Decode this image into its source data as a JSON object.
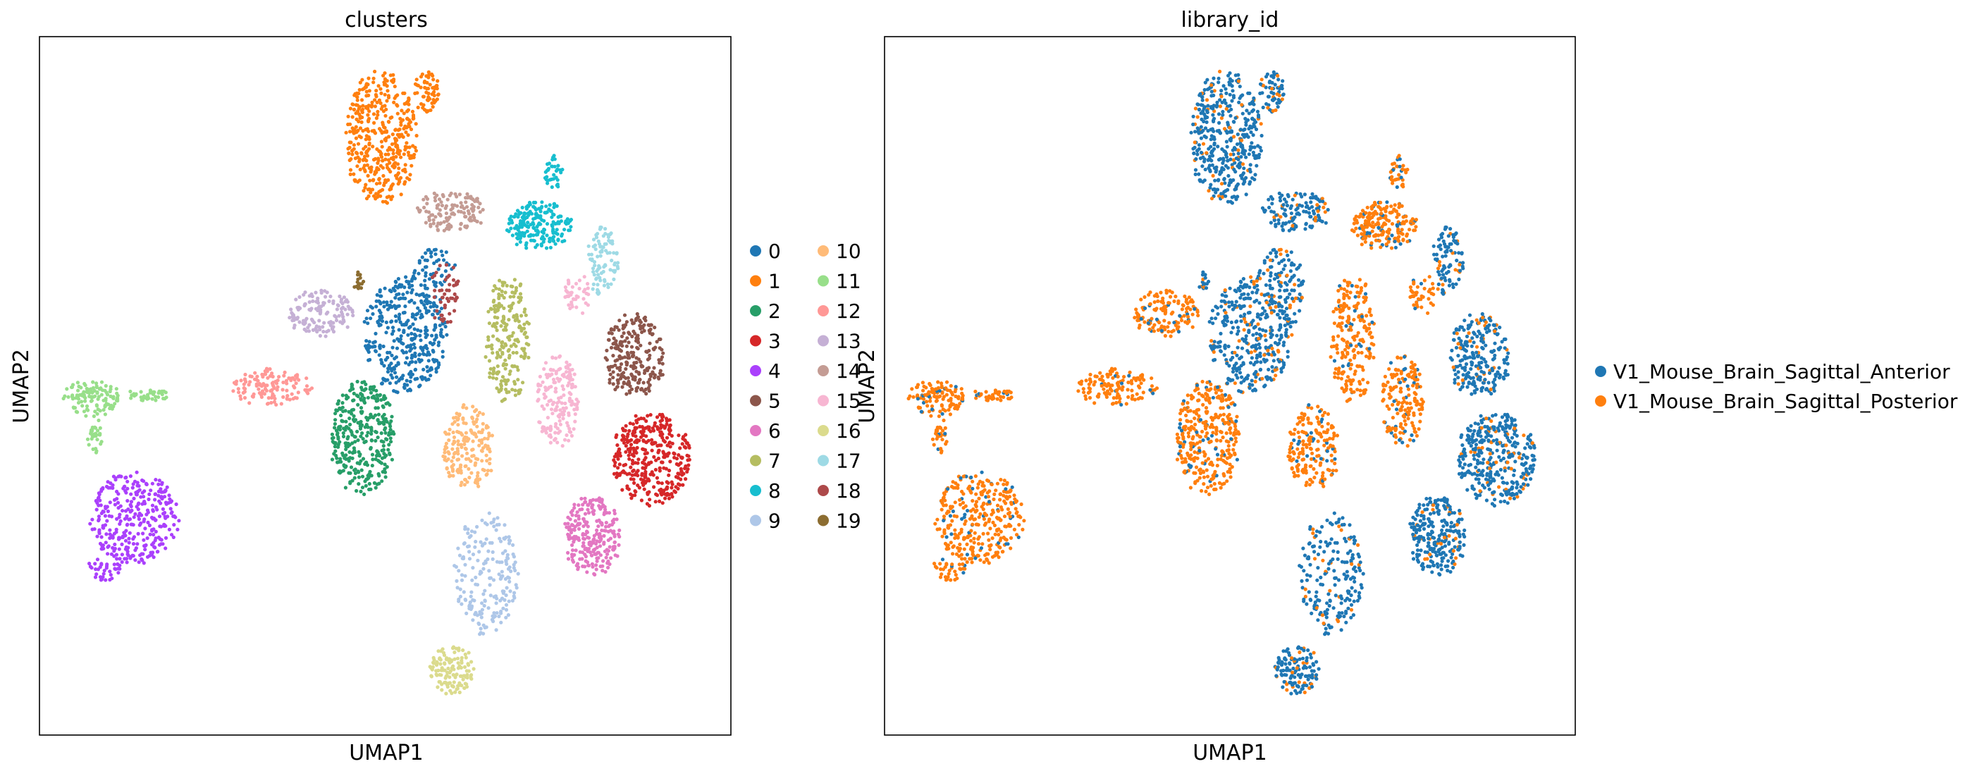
{
  "chart_data": [
    {
      "type": "scatter",
      "title": "clusters",
      "xlabel": "UMAP1",
      "ylabel": "UMAP2",
      "ticks": "none",
      "grid": false,
      "legend_placement": "right, two columns",
      "categories": [
        {
          "name": "0",
          "color": "#1f77b4"
        },
        {
          "name": "1",
          "color": "#ff7f0e"
        },
        {
          "name": "2",
          "color": "#279e68"
        },
        {
          "name": "3",
          "color": "#d62728"
        },
        {
          "name": "4",
          "color": "#aa40fc"
        },
        {
          "name": "5",
          "color": "#8c564b"
        },
        {
          "name": "6",
          "color": "#e377c2"
        },
        {
          "name": "7",
          "color": "#b5bd61"
        },
        {
          "name": "8",
          "color": "#17becf"
        },
        {
          "name": "9",
          "color": "#aec7e8"
        },
        {
          "name": "10",
          "color": "#ffbb78"
        },
        {
          "name": "11",
          "color": "#98df8a"
        },
        {
          "name": "12",
          "color": "#ff9896"
        },
        {
          "name": "13",
          "color": "#c5b0d5"
        },
        {
          "name": "14",
          "color": "#c49c94"
        },
        {
          "name": "15",
          "color": "#f7b6d2"
        },
        {
          "name": "16",
          "color": "#dbdb8d"
        },
        {
          "name": "17",
          "color": "#9edae5"
        },
        {
          "name": "18",
          "color": "#ad494a"
        },
        {
          "name": "19",
          "color": "#8c6d31"
        }
      ]
    },
    {
      "type": "scatter",
      "title": "library_id",
      "xlabel": "UMAP1",
      "ylabel": "UMAP2",
      "ticks": "none",
      "grid": false,
      "legend_placement": "right",
      "categories": [
        {
          "name": "V1_Mouse_Brain_Sagittal_Anterior",
          "color": "#1f77b4"
        },
        {
          "name": "V1_Mouse_Brain_Sagittal_Posterior",
          "color": "#ff7f0e"
        }
      ]
    }
  ]
}
